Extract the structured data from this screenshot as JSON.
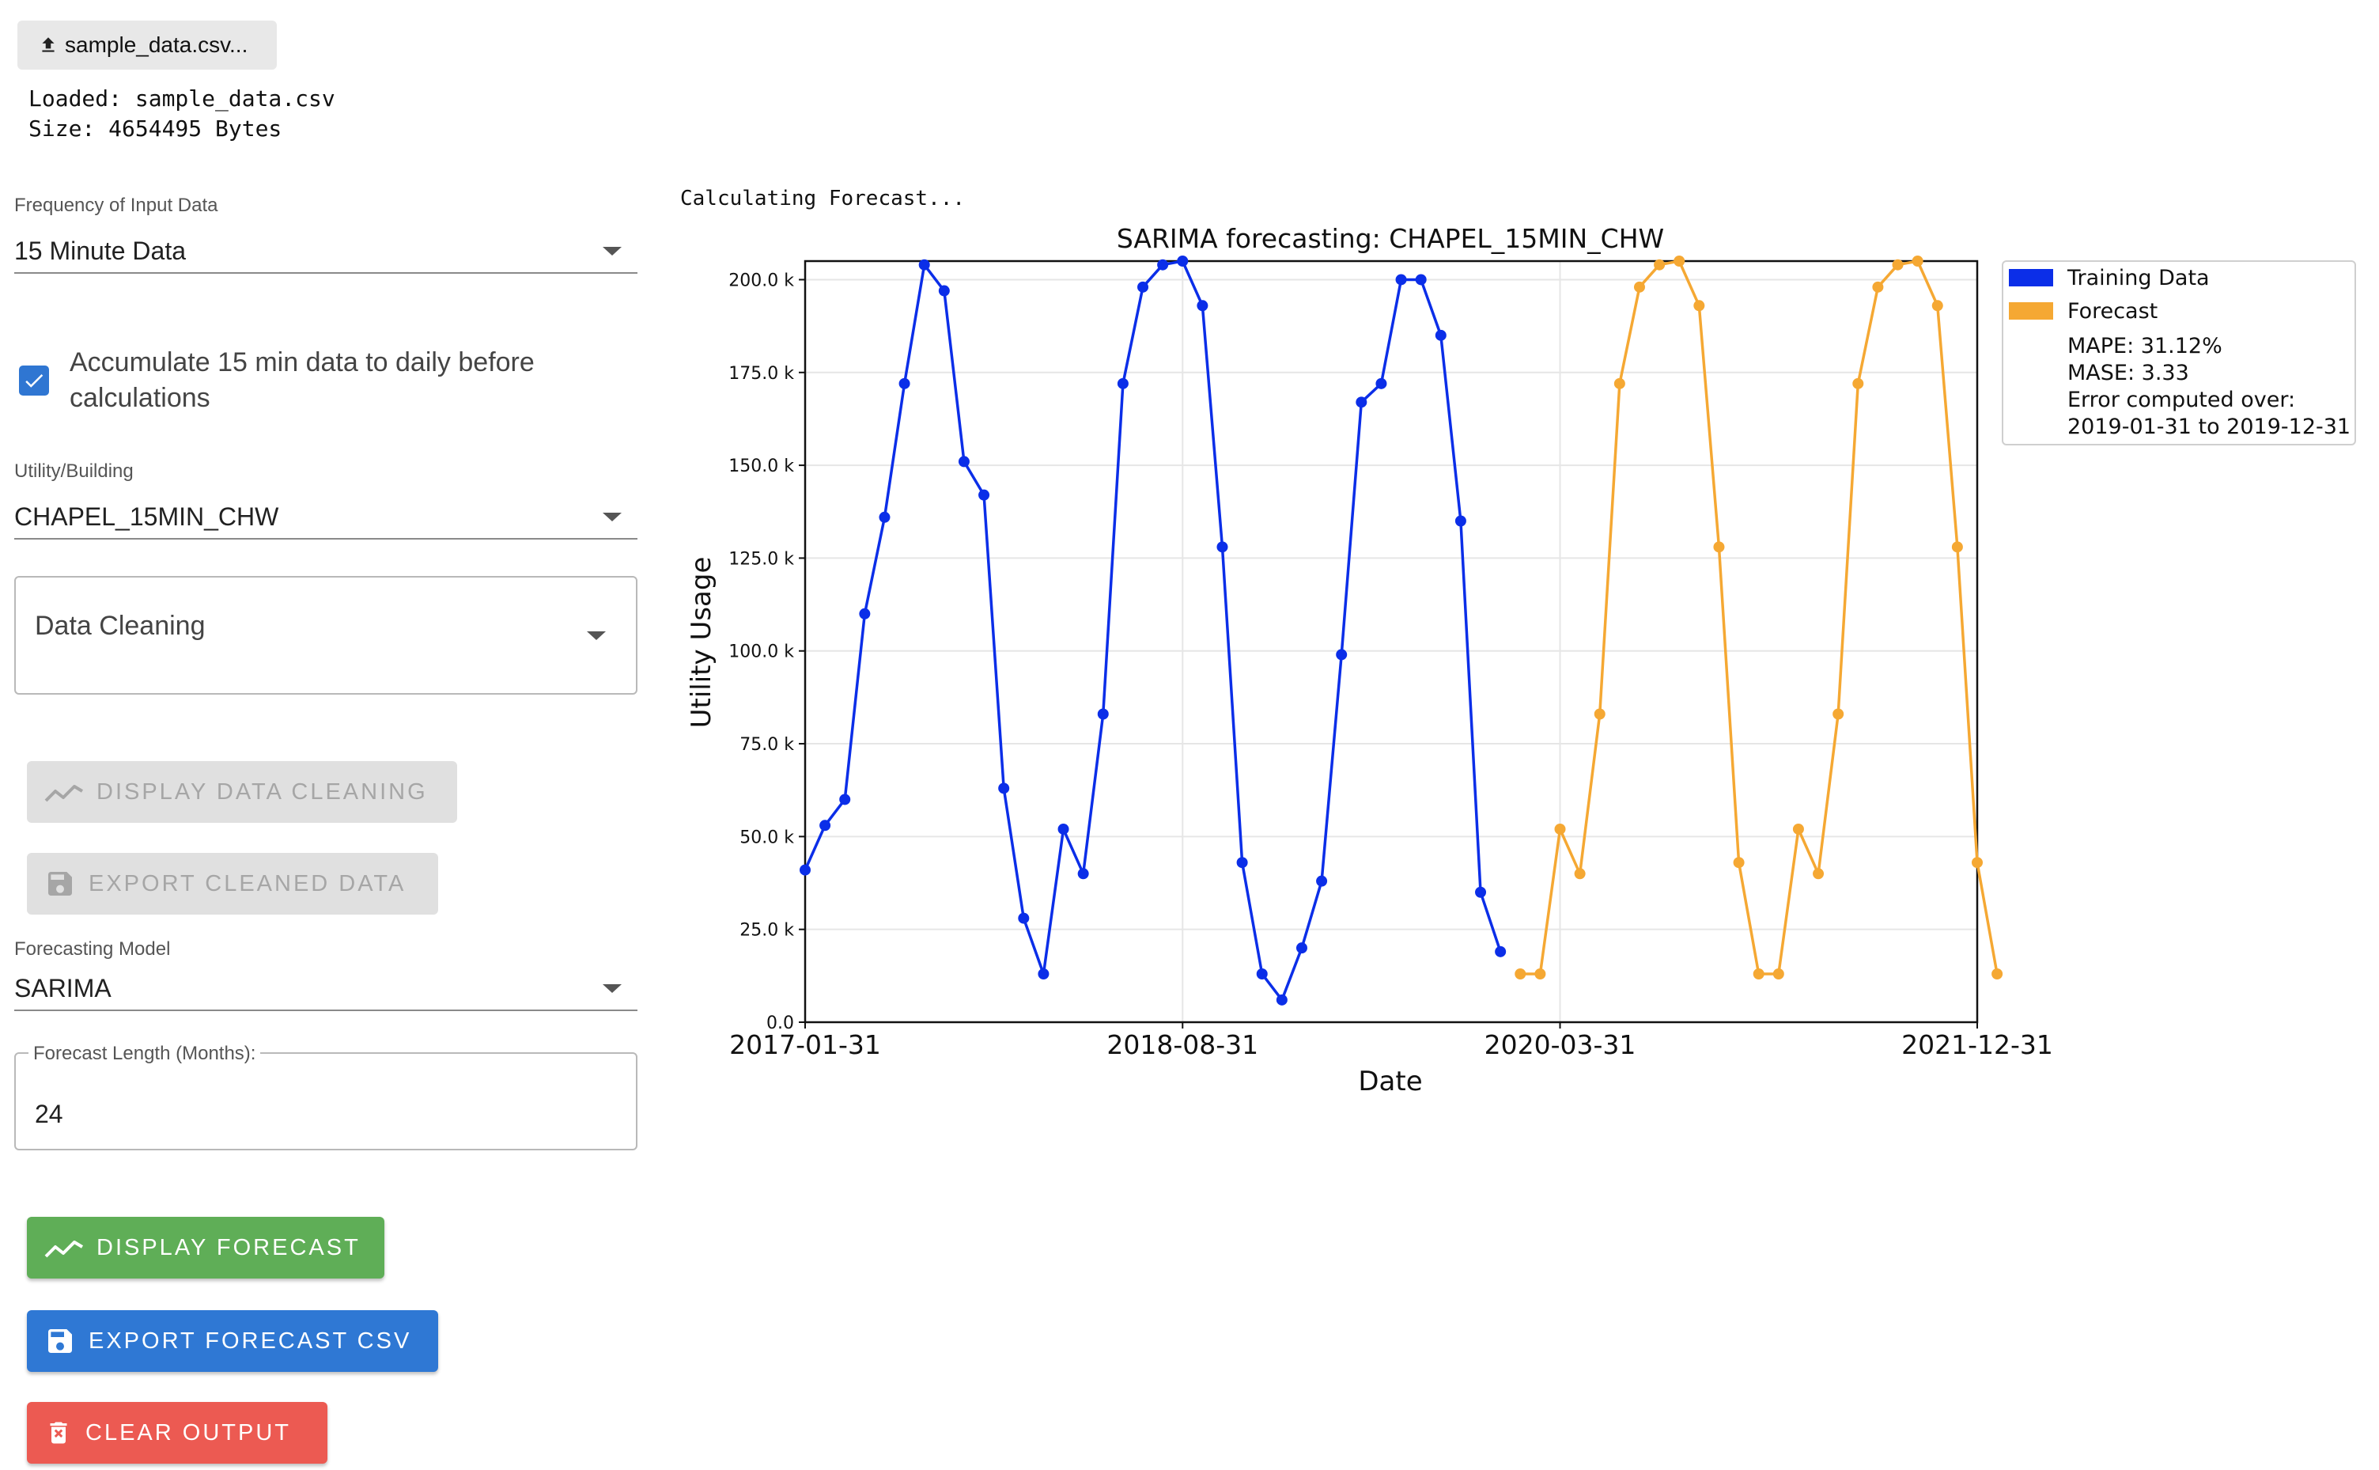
{
  "upload": {
    "label": "sample_data.csv..."
  },
  "file_info": {
    "loaded": "Loaded: sample_data.csv",
    "size": "Size: 4654495 Bytes"
  },
  "status": {
    "text": "Calculating Forecast..."
  },
  "frequency": {
    "label": "Frequency of Input Data",
    "value": "15 Minute Data"
  },
  "accumulate": {
    "checked": true,
    "label": "Accumulate 15 min data to daily before calculations"
  },
  "utility": {
    "label": "Utility/Building",
    "value": "CHAPEL_15MIN_CHW"
  },
  "cleaning": {
    "value": "Data Cleaning"
  },
  "buttons": {
    "display_cleaning": "DISPLAY DATA CLEANING",
    "export_cleaned": "EXPORT CLEANED DATA",
    "display_forecast": "DISPLAY FORECAST",
    "export_forecast": "EXPORT FORECAST CSV",
    "clear_output": "CLEAR OUTPUT"
  },
  "model": {
    "label": "Forecasting Model",
    "value": "SARIMA"
  },
  "forecast_length": {
    "label": "Forecast Length (Months):",
    "value": "24"
  },
  "colors": {
    "training": "#0b2ee8",
    "forecast": "#f5a833",
    "green": "#5fae57",
    "blue": "#2f78d4",
    "red": "#ec5a52"
  },
  "chart_data": {
    "type": "line",
    "title": "SARIMA forecasting: CHAPEL_15MIN_CHW",
    "xlabel": "Date",
    "ylabel": "Utility Usage",
    "x_ticks": [
      "2017-01-31",
      "2018-08-31",
      "2020-03-31",
      "2021-12-31"
    ],
    "y_ticks": [
      "0.0",
      "25.0 k",
      "50.0 k",
      "75.0 k",
      "100.0 k",
      "125.0 k",
      "150.0 k",
      "175.0 k",
      "200.0 k"
    ],
    "ylim": [
      0,
      205000
    ],
    "grid": true,
    "legend_position": "outside-top-right",
    "series": [
      {
        "name": "Training Data",
        "x_start": "2017-01-31",
        "frequency": "monthly",
        "values": [
          41000,
          53000,
          60000,
          110000,
          136000,
          172000,
          204000,
          197000,
          151000,
          142000,
          63000,
          28000,
          13000,
          52000,
          40000,
          83000,
          172000,
          198000,
          204000,
          205000,
          193000,
          128000,
          43000,
          13000,
          6000,
          20000,
          38000,
          99000,
          167000,
          172000,
          200000,
          200000,
          185000,
          135000,
          35000,
          19000
        ]
      },
      {
        "name": "Forecast",
        "x_start": "2020-01-31",
        "frequency": "monthly",
        "values": [
          13000,
          13000,
          52000,
          40000,
          83000,
          172000,
          198000,
          204000,
          205000,
          193000,
          128000,
          43000,
          13000,
          13000,
          52000,
          40000,
          83000,
          172000,
          198000,
          204000,
          205000,
          193000,
          128000,
          43000,
          13000
        ]
      }
    ],
    "legend_notes": [
      "MAPE: 31.12%",
      "MASE: 3.33",
      "Error computed over:",
      "2019-01-31 to 2019-12-31"
    ]
  }
}
